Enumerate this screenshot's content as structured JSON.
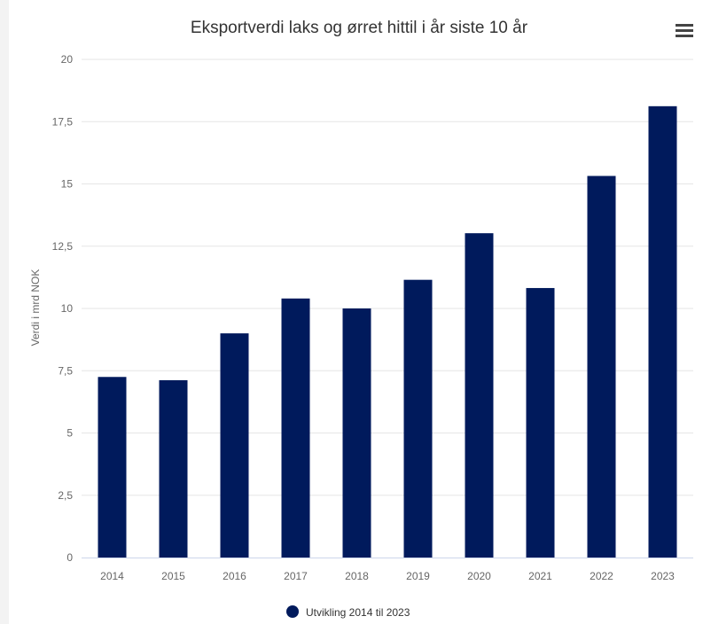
{
  "chart_data": {
    "type": "bar",
    "title": "Eksportverdi laks og ørret hittil i år siste 10 år",
    "ylabel": "Verdi i mrd NOK",
    "xlabel": "",
    "categories": [
      "2014",
      "2015",
      "2016",
      "2017",
      "2018",
      "2019",
      "2020",
      "2021",
      "2022",
      "2023"
    ],
    "series": [
      {
        "name": "Utvikling 2014 til 2023",
        "values": [
          7.25,
          7.12,
          9.0,
          10.4,
          10.0,
          11.15,
          13.02,
          10.82,
          15.32,
          18.12
        ]
      }
    ],
    "ylim": [
      0,
      20
    ],
    "yticks": [
      "0",
      "2,5",
      "5",
      "7,5",
      "10",
      "12,5",
      "15",
      "17,5",
      "20"
    ],
    "ytick_values": [
      0,
      2.5,
      5,
      7.5,
      10,
      12.5,
      15,
      17.5,
      20
    ],
    "grid": true,
    "legend_position": "bottom-center",
    "colors": {
      "bar": "#001a5c",
      "legend_marker": "#001a5c"
    }
  },
  "menu": {
    "icon": "hamburger-menu-icon"
  }
}
